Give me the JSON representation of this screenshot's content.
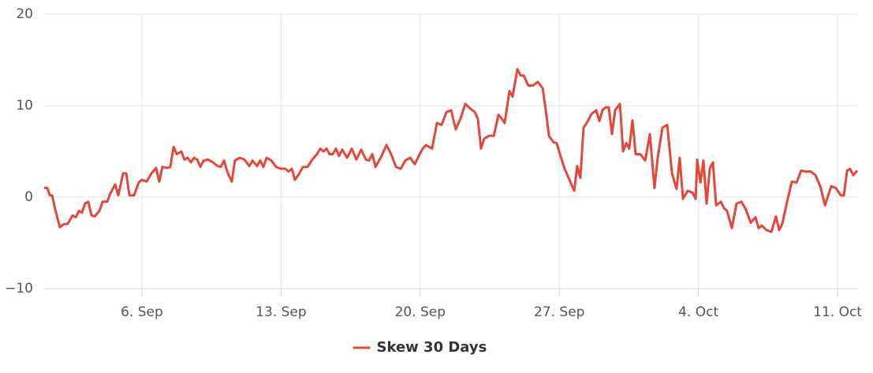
{
  "chart_data": {
    "type": "line",
    "xlim": [
      1.08,
      41.99
    ],
    "ylim": [
      -10,
      20
    ],
    "xticks": [
      {
        "value": 6,
        "label": "6. Sep"
      },
      {
        "value": 13,
        "label": "13. Sep"
      },
      {
        "value": 20,
        "label": "20. Sep"
      },
      {
        "value": 27,
        "label": "27. Sep"
      },
      {
        "value": 34,
        "label": "4. Oct"
      },
      {
        "value": 41,
        "label": "11. Oct"
      }
    ],
    "yticks": [
      {
        "value": -10,
        "label": "−10"
      },
      0,
      10,
      20
    ],
    "grid": true,
    "legend": "bottom",
    "series": [
      {
        "name": "Skew 30 Days",
        "color": "#e4473a",
        "x": [
          1.08,
          1.24,
          1.36,
          1.48,
          1.63,
          1.87,
          2.03,
          2.27,
          2.51,
          2.67,
          2.83,
          2.98,
          3.14,
          3.3,
          3.46,
          3.62,
          3.86,
          4.02,
          4.25,
          4.41,
          4.65,
          4.81,
          5.05,
          5.21,
          5.37,
          5.6,
          5.84,
          6.0,
          6.24,
          6.48,
          6.71,
          6.87,
          7.03,
          7.27,
          7.43,
          7.59,
          7.75,
          7.98,
          8.14,
          8.3,
          8.46,
          8.62,
          8.78,
          8.94,
          9.1,
          9.33,
          9.57,
          9.81,
          9.97,
          10.13,
          10.29,
          10.52,
          10.68,
          10.92,
          11.16,
          11.4,
          11.56,
          11.79,
          11.95,
          12.11,
          12.27,
          12.51,
          12.75,
          12.98,
          13.22,
          13.38,
          13.54,
          13.7,
          13.86,
          14.1,
          14.33,
          14.57,
          14.81,
          14.97,
          15.13,
          15.29,
          15.44,
          15.6,
          15.76,
          15.92,
          16.08,
          16.32,
          16.56,
          16.79,
          17.03,
          17.27,
          17.43,
          17.59,
          17.75,
          18.06,
          18.3,
          18.54,
          18.78,
          19.02,
          19.25,
          19.49,
          19.73,
          19.97,
          20.13,
          20.29,
          20.6,
          20.84,
          21.08,
          21.32,
          21.56,
          21.79,
          22.03,
          22.27,
          22.51,
          22.75,
          22.9,
          23.06,
          23.22,
          23.46,
          23.7,
          23.94,
          24.1,
          24.25,
          24.49,
          24.65,
          24.89,
          25.05,
          25.21,
          25.44,
          25.68,
          25.92,
          26.16,
          26.32,
          26.48,
          26.71,
          26.87,
          27.03,
          27.27,
          27.51,
          27.75,
          27.9,
          28.06,
          28.22,
          28.38,
          28.62,
          28.86,
          29.02,
          29.17,
          29.33,
          29.49,
          29.65,
          29.81,
          30.05,
          30.21,
          30.37,
          30.52,
          30.68,
          30.84,
          31.08,
          31.32,
          31.56,
          31.79,
          31.95,
          32.19,
          32.43,
          32.67,
          32.9,
          33.06,
          33.22,
          33.46,
          33.7,
          33.86,
          33.94,
          34.1,
          34.25,
          34.41,
          34.57,
          34.73,
          34.89,
          35.13,
          35.29,
          35.44,
          35.68,
          35.92,
          36.16,
          36.4,
          36.63,
          36.87,
          37.03,
          37.19,
          37.43,
          37.67,
          37.9,
          38.06,
          38.22,
          38.46,
          38.7,
          38.94,
          39.17,
          39.41,
          39.65,
          39.89,
          40.13,
          40.37,
          40.68,
          40.92,
          41.16,
          41.32,
          41.48,
          41.63,
          41.79,
          41.99
        ],
        "values": [
          1.0,
          1.0,
          0.2,
          0.2,
          -1.3,
          -3.3,
          -3.0,
          -2.9,
          -2.0,
          -2.2,
          -1.5,
          -1.7,
          -0.7,
          -0.5,
          -2.0,
          -2.1,
          -1.5,
          -0.5,
          -0.5,
          0.4,
          1.4,
          0.2,
          2.6,
          2.6,
          0.2,
          0.2,
          1.6,
          1.9,
          1.7,
          2.6,
          3.2,
          1.7,
          3.3,
          3.2,
          3.3,
          5.5,
          4.7,
          5.0,
          4.1,
          4.3,
          3.8,
          4.3,
          4.1,
          3.3,
          4.0,
          4.1,
          3.8,
          3.4,
          3.3,
          4.0,
          2.8,
          1.7,
          4.0,
          4.3,
          4.1,
          3.4,
          4.0,
          3.4,
          4.0,
          3.3,
          4.3,
          4.0,
          3.3,
          3.1,
          3.1,
          2.8,
          3.1,
          1.9,
          2.4,
          3.3,
          3.3,
          4.1,
          4.7,
          5.3,
          5.0,
          5.3,
          4.7,
          4.7,
          5.3,
          4.5,
          5.2,
          4.3,
          5.3,
          4.1,
          5.2,
          4.1,
          4.0,
          4.7,
          3.3,
          4.5,
          5.7,
          4.7,
          3.3,
          3.1,
          4.0,
          4.3,
          3.6,
          4.7,
          5.3,
          5.7,
          5.3,
          8.1,
          7.9,
          9.3,
          9.5,
          7.4,
          8.6,
          10.2,
          9.7,
          9.3,
          8.6,
          5.3,
          6.4,
          6.7,
          6.7,
          9.0,
          8.6,
          8.1,
          11.6,
          11.0,
          14.0,
          13.3,
          13.3,
          12.2,
          12.2,
          12.6,
          11.9,
          9.5,
          6.7,
          6.0,
          5.9,
          4.7,
          3.1,
          1.9,
          0.7,
          3.4,
          2.1,
          7.6,
          8.1,
          9.1,
          9.5,
          8.3,
          9.5,
          9.8,
          9.8,
          6.9,
          9.5,
          10.2,
          5.0,
          5.9,
          5.3,
          8.4,
          4.7,
          4.7,
          4.0,
          6.9,
          1.0,
          4.3,
          7.6,
          7.9,
          2.6,
          0.9,
          4.3,
          -0.2,
          0.7,
          0.5,
          -0.2,
          4.1,
          1.6,
          4.0,
          -0.7,
          3.1,
          3.8,
          -0.9,
          -0.5,
          -1.2,
          -1.5,
          -3.4,
          -0.7,
          -0.5,
          -1.4,
          -2.8,
          -2.2,
          -3.4,
          -3.1,
          -3.6,
          -3.8,
          -2.1,
          -3.6,
          -2.9,
          -0.5,
          1.7,
          1.6,
          2.9,
          2.8,
          2.8,
          2.4,
          1.2,
          -0.9,
          1.2,
          1.0,
          0.2,
          0.2,
          2.9,
          3.1,
          2.4,
          2.9
        ]
      }
    ]
  }
}
